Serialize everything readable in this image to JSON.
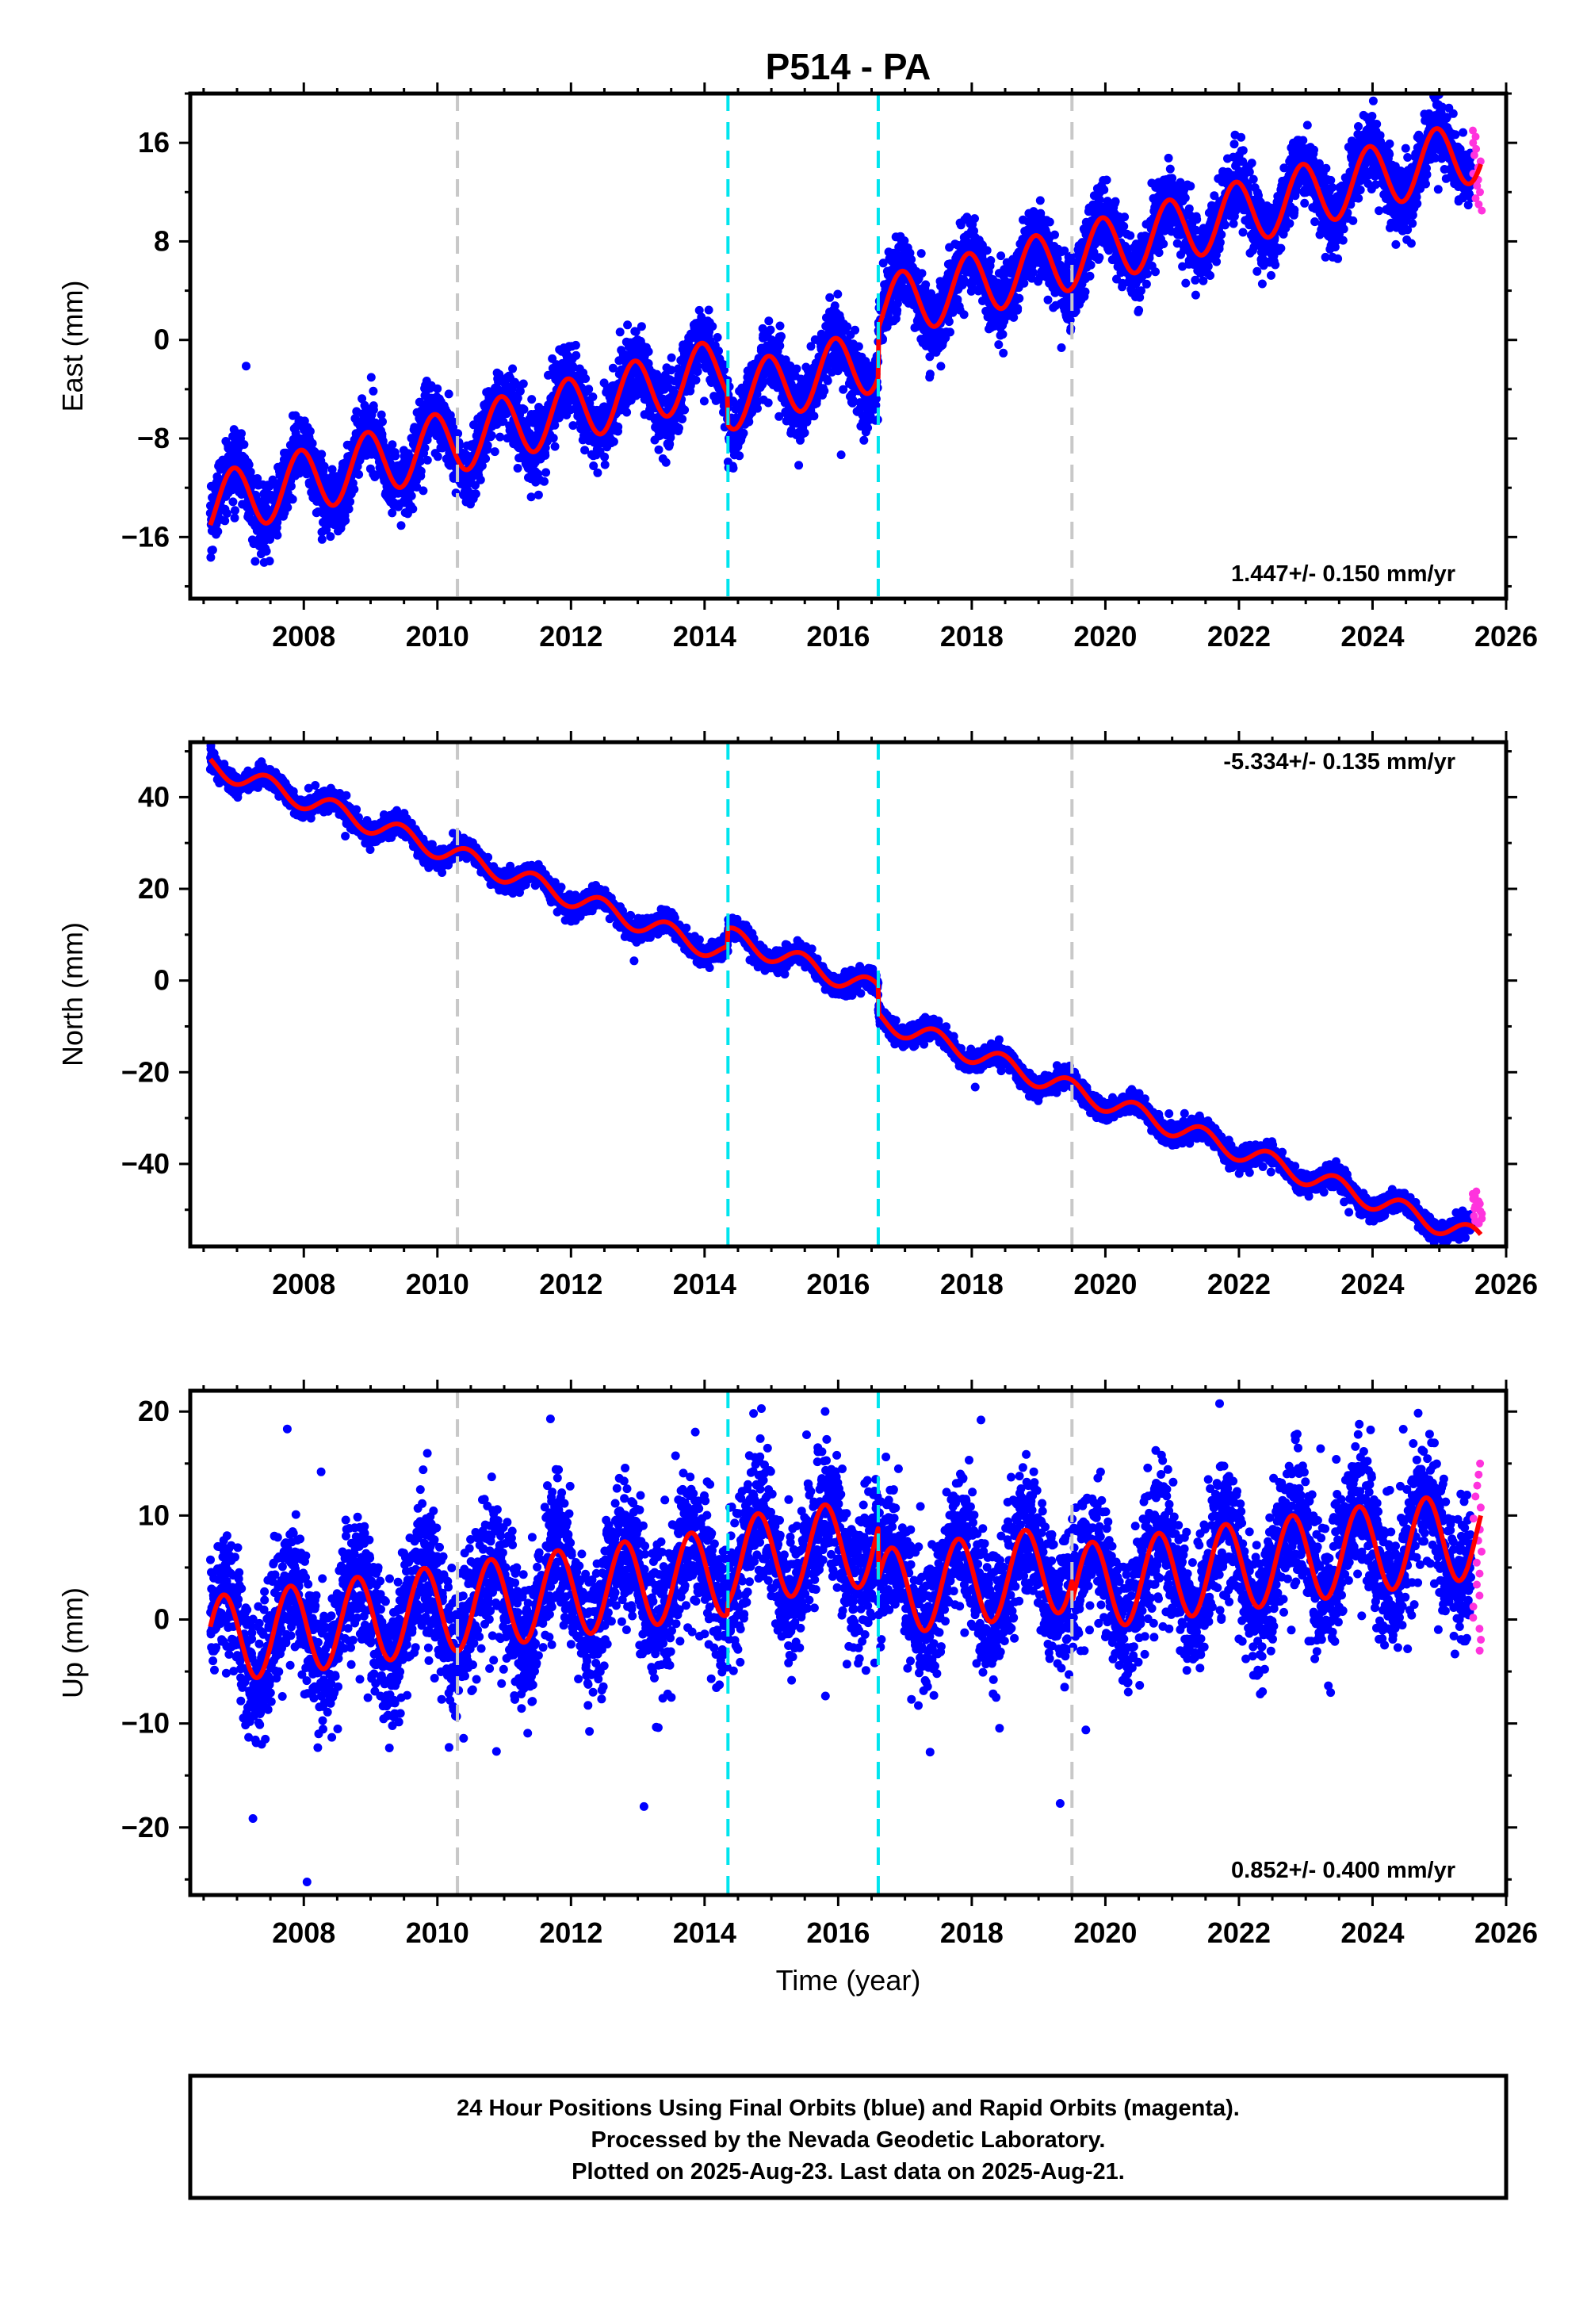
{
  "title": "P514 - PA",
  "footer": {
    "lines": [
      "24 Hour Positions Using Final Orbits (blue) and Rapid Orbits (magenta).",
      "Processed by the Nevada Geodetic Laboratory.",
      "Plotted on 2025-Aug-23. Last data on 2025-Aug-21."
    ]
  },
  "colors": {
    "final_orbits": "#0000ff",
    "rapid_orbits": "#ff33dd",
    "model_fit": "#ff0000",
    "equipment_change": "#c8c8c8",
    "earthquake": "#00e5ee"
  },
  "chart_data": [
    {
      "type": "scatter",
      "component": "east",
      "ylabel": "East (mm)",
      "xlabel": "",
      "xlim": [
        2006.3,
        2026.0
      ],
      "ylim": [
        -21,
        20
      ],
      "xticks": [
        2008,
        2010,
        2012,
        2014,
        2016,
        2018,
        2020,
        2022,
        2024,
        2026
      ],
      "yticks": [
        -16,
        -8,
        0,
        8,
        16
      ],
      "ytick_labels": [
        "−16",
        "−8",
        "0",
        "8",
        "16"
      ],
      "rate_label": "1.447+/- 0.150 mm/yr",
      "rate_position": "bottom-right",
      "grey_dashed_lines": [
        2010.3,
        2019.5
      ],
      "cyan_dashed_lines": [
        2014.35,
        2016.6
      ],
      "model": {
        "start": 2006.6,
        "end": 2025.62,
        "offset": -13.5,
        "rate": 1.447,
        "amplitude": 2.6,
        "peak_phase": 0.95,
        "steps": [
          {
            "t": 2014.35,
            "dy": -2.5
          },
          {
            "t": 2016.6,
            "dy": 4.0
          }
        ]
      },
      "points": {
        "count": 6400,
        "noise_sd": 1.4,
        "outlier_fraction": 0.004,
        "outlier_scale": 4
      },
      "rapid_points": {
        "start": 2025.5,
        "end": 2025.64,
        "min": 10.5,
        "max": 17.0,
        "count": 14
      }
    },
    {
      "type": "scatter",
      "component": "north",
      "ylabel": "North (mm)",
      "xlabel": "",
      "xlim": [
        2006.3,
        2026.0
      ],
      "ylim": [
        -58,
        52
      ],
      "xticks": [
        2008,
        2010,
        2012,
        2014,
        2016,
        2018,
        2020,
        2022,
        2024,
        2026
      ],
      "yticks": [
        -40,
        -20,
        0,
        20,
        40
      ],
      "ytick_labels": [
        "−40",
        "−20",
        "0",
        "20",
        "40"
      ],
      "rate_label": "-5.334+/- 0.135 mm/yr",
      "rate_position": "top-right",
      "grey_dashed_lines": [
        2010.3,
        2019.5
      ],
      "cyan_dashed_lines": [
        2014.35,
        2016.6
      ],
      "model": {
        "start": 2006.6,
        "end": 2025.62,
        "offset": 47.0,
        "rate": -5.334,
        "amplitude": 2.2,
        "peak_phase": 0.45,
        "steps": [
          {
            "t": 2014.35,
            "dy": 4.0
          },
          {
            "t": 2016.6,
            "dy": -6.0
          }
        ]
      },
      "points": {
        "count": 6400,
        "noise_sd": 1.1,
        "outlier_fraction": 0.003,
        "outlier_scale": 4
      },
      "rapid_points": {
        "start": 2025.5,
        "end": 2025.64,
        "min": -53.0,
        "max": -46.0,
        "count": 14
      }
    },
    {
      "type": "scatter",
      "component": "up",
      "ylabel": "Up (mm)",
      "xlabel": "Time (year)",
      "xlim": [
        2006.3,
        2026.0
      ],
      "ylim": [
        -26.5,
        22
      ],
      "xticks": [
        2008,
        2010,
        2012,
        2014,
        2016,
        2018,
        2020,
        2022,
        2024,
        2026
      ],
      "yticks": [
        -20,
        -10,
        0,
        10,
        20
      ],
      "ytick_labels": [
        "−20",
        "−10",
        "0",
        "10",
        "20"
      ],
      "rate_label": "0.852+/- 0.400 mm/yr",
      "rate_position": "bottom-right",
      "grey_dashed_lines": [
        2010.3,
        2019.5
      ],
      "cyan_dashed_lines": [
        2014.35,
        2016.6
      ],
      "model": {
        "start": 2006.6,
        "end": 2025.62,
        "offset": -2.0,
        "rate": 0.852,
        "amplitude": 4.2,
        "peak_phase": 0.8,
        "steps": [
          {
            "t": 2014.35,
            "dy": 1.0
          },
          {
            "t": 2016.6,
            "dy": -5.0
          },
          {
            "t": 2019.5,
            "dy": -2.0
          }
        ]
      },
      "points": {
        "count": 6400,
        "noise_sd": 3.2,
        "outlier_fraction": 0.012,
        "outlier_scale": 3
      },
      "rapid_points": {
        "start": 2025.5,
        "end": 2025.64,
        "min": -3.0,
        "max": 15.0,
        "count": 18
      }
    }
  ]
}
